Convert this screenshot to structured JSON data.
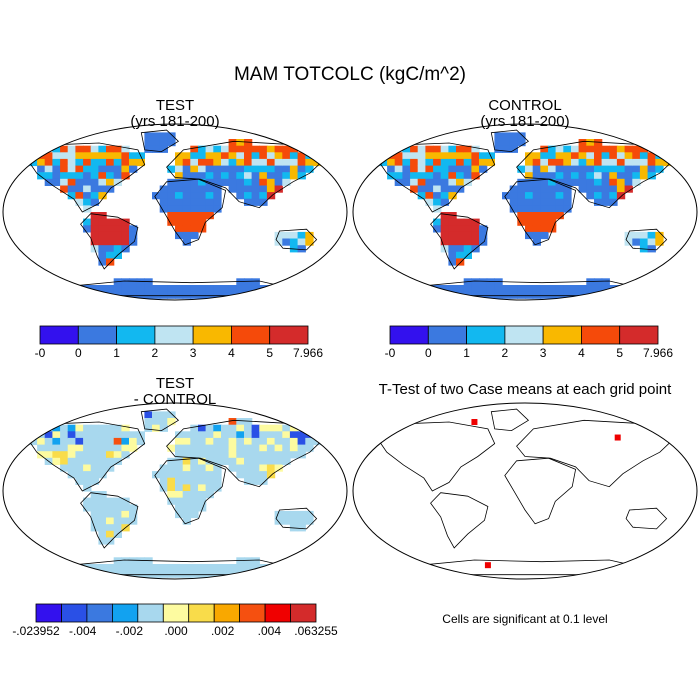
{
  "title": "MAM TOTCOLC (kgC/m^2)",
  "panels": [
    {
      "id": "test",
      "title_line1": "TEST",
      "title_line2": "(yrs 181-200)",
      "field": "absolute"
    },
    {
      "id": "control",
      "title_line1": "CONTROL",
      "title_line2": "(yrs 181-200)",
      "field": "absolute"
    },
    {
      "id": "diff",
      "title_line1": "TEST",
      "title_line2": "- CONTROL",
      "field": "difference"
    },
    {
      "id": "ttest",
      "title_line1": "T-Test of two Case means at each grid point",
      "title_line2": "",
      "field": "significance"
    }
  ],
  "colorbar_abs": {
    "colors": [
      "#3311ee",
      "#3b79e0",
      "#12b8f0",
      "#bfe4f2",
      "#f9b800",
      "#f54a0a",
      "#d42b2b"
    ],
    "labels": [
      "-0",
      "0",
      "1",
      "2",
      "3",
      "4",
      "5",
      "7.966"
    ]
  },
  "colorbar_diff": {
    "colors": [
      "#3311ee",
      "#2a50e6",
      "#3b79e0",
      "#12a2f0",
      "#a8d8ee",
      "#fdfba0",
      "#f9dc4a",
      "#f9a800",
      "#f55010",
      "#f00000",
      "#d42b2b"
    ],
    "labels": [
      "-.023952",
      "-.004",
      "-.002",
      ".000",
      ".002",
      ".004",
      ".063255"
    ]
  },
  "significance_note": "Cells are significant at 0.1 level"
}
